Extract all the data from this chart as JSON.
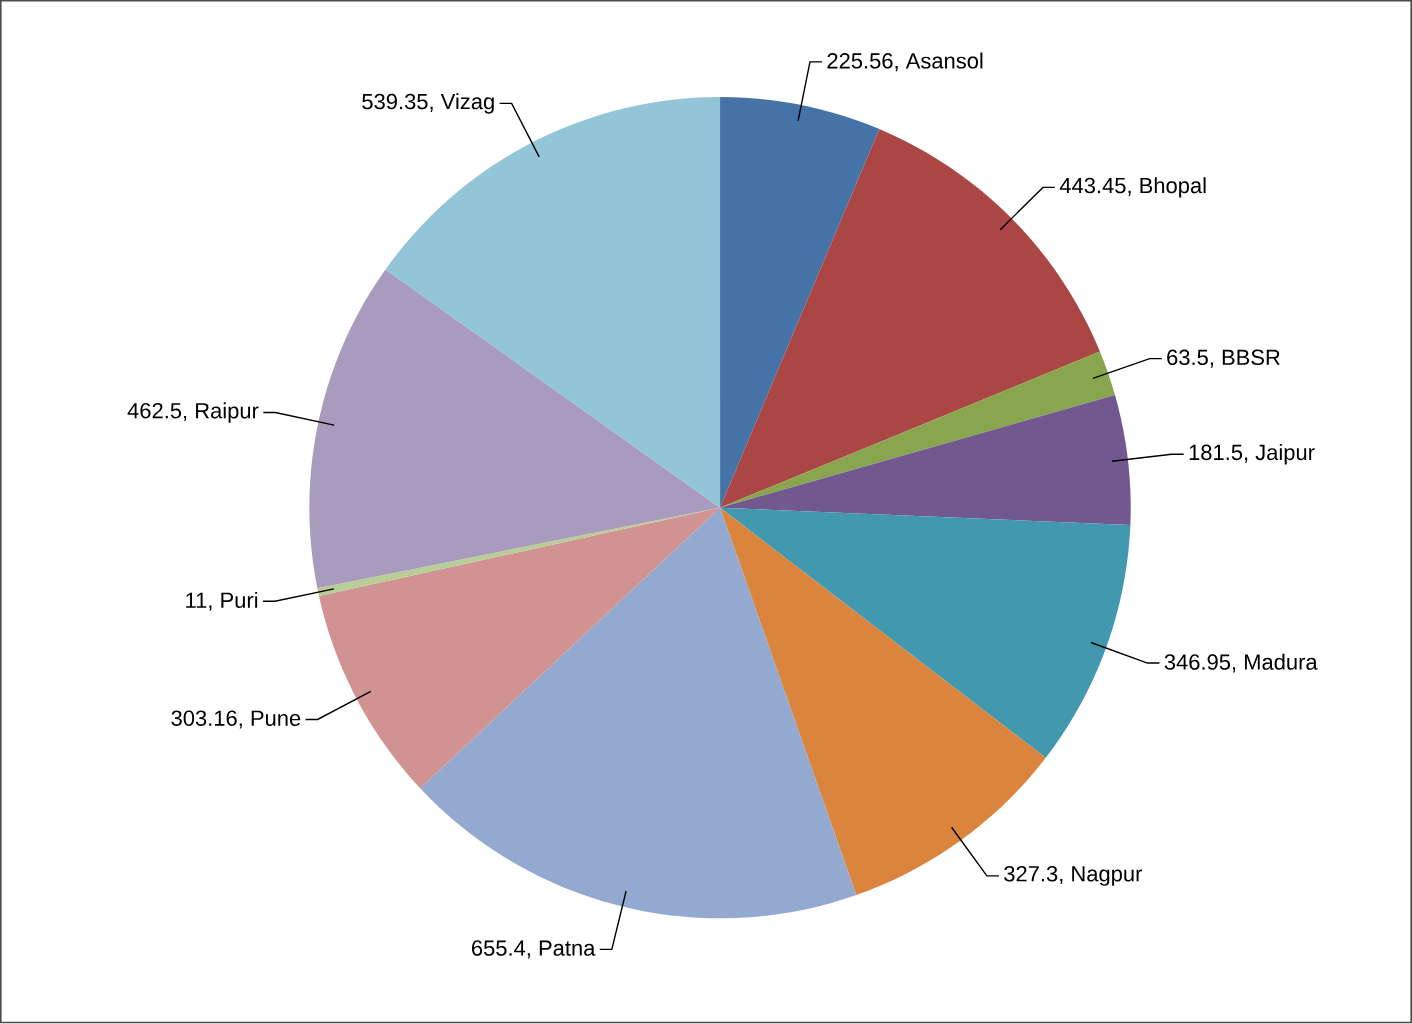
{
  "chart_data": {
    "type": "pie",
    "categories": [
      "Asansol",
      "Bhopal",
      "BBSR",
      "Jaipur",
      "Madura",
      "Nagpur",
      "Patna",
      "Pune",
      "Puri",
      "Raipur",
      "Vizag"
    ],
    "values": [
      225.56,
      443.45,
      63.5,
      181.5,
      346.95,
      327.3,
      655.4,
      303.16,
      11,
      462.5,
      539.35
    ],
    "value_labels": [
      "225.56,",
      "443.45,",
      "63.5,",
      "181.5,",
      "346.95,",
      "327.3,",
      "655.4,",
      "303.16,",
      "11,",
      "462.5,",
      "539.35,"
    ],
    "colors": [
      "#4572a7",
      "#aa4643",
      "#89a54e",
      "#71588f",
      "#4198af",
      "#db843d",
      "#93a9cf",
      "#d19392",
      "#b9cd96",
      "#a99bbd",
      "#92c5d5"
    ]
  }
}
